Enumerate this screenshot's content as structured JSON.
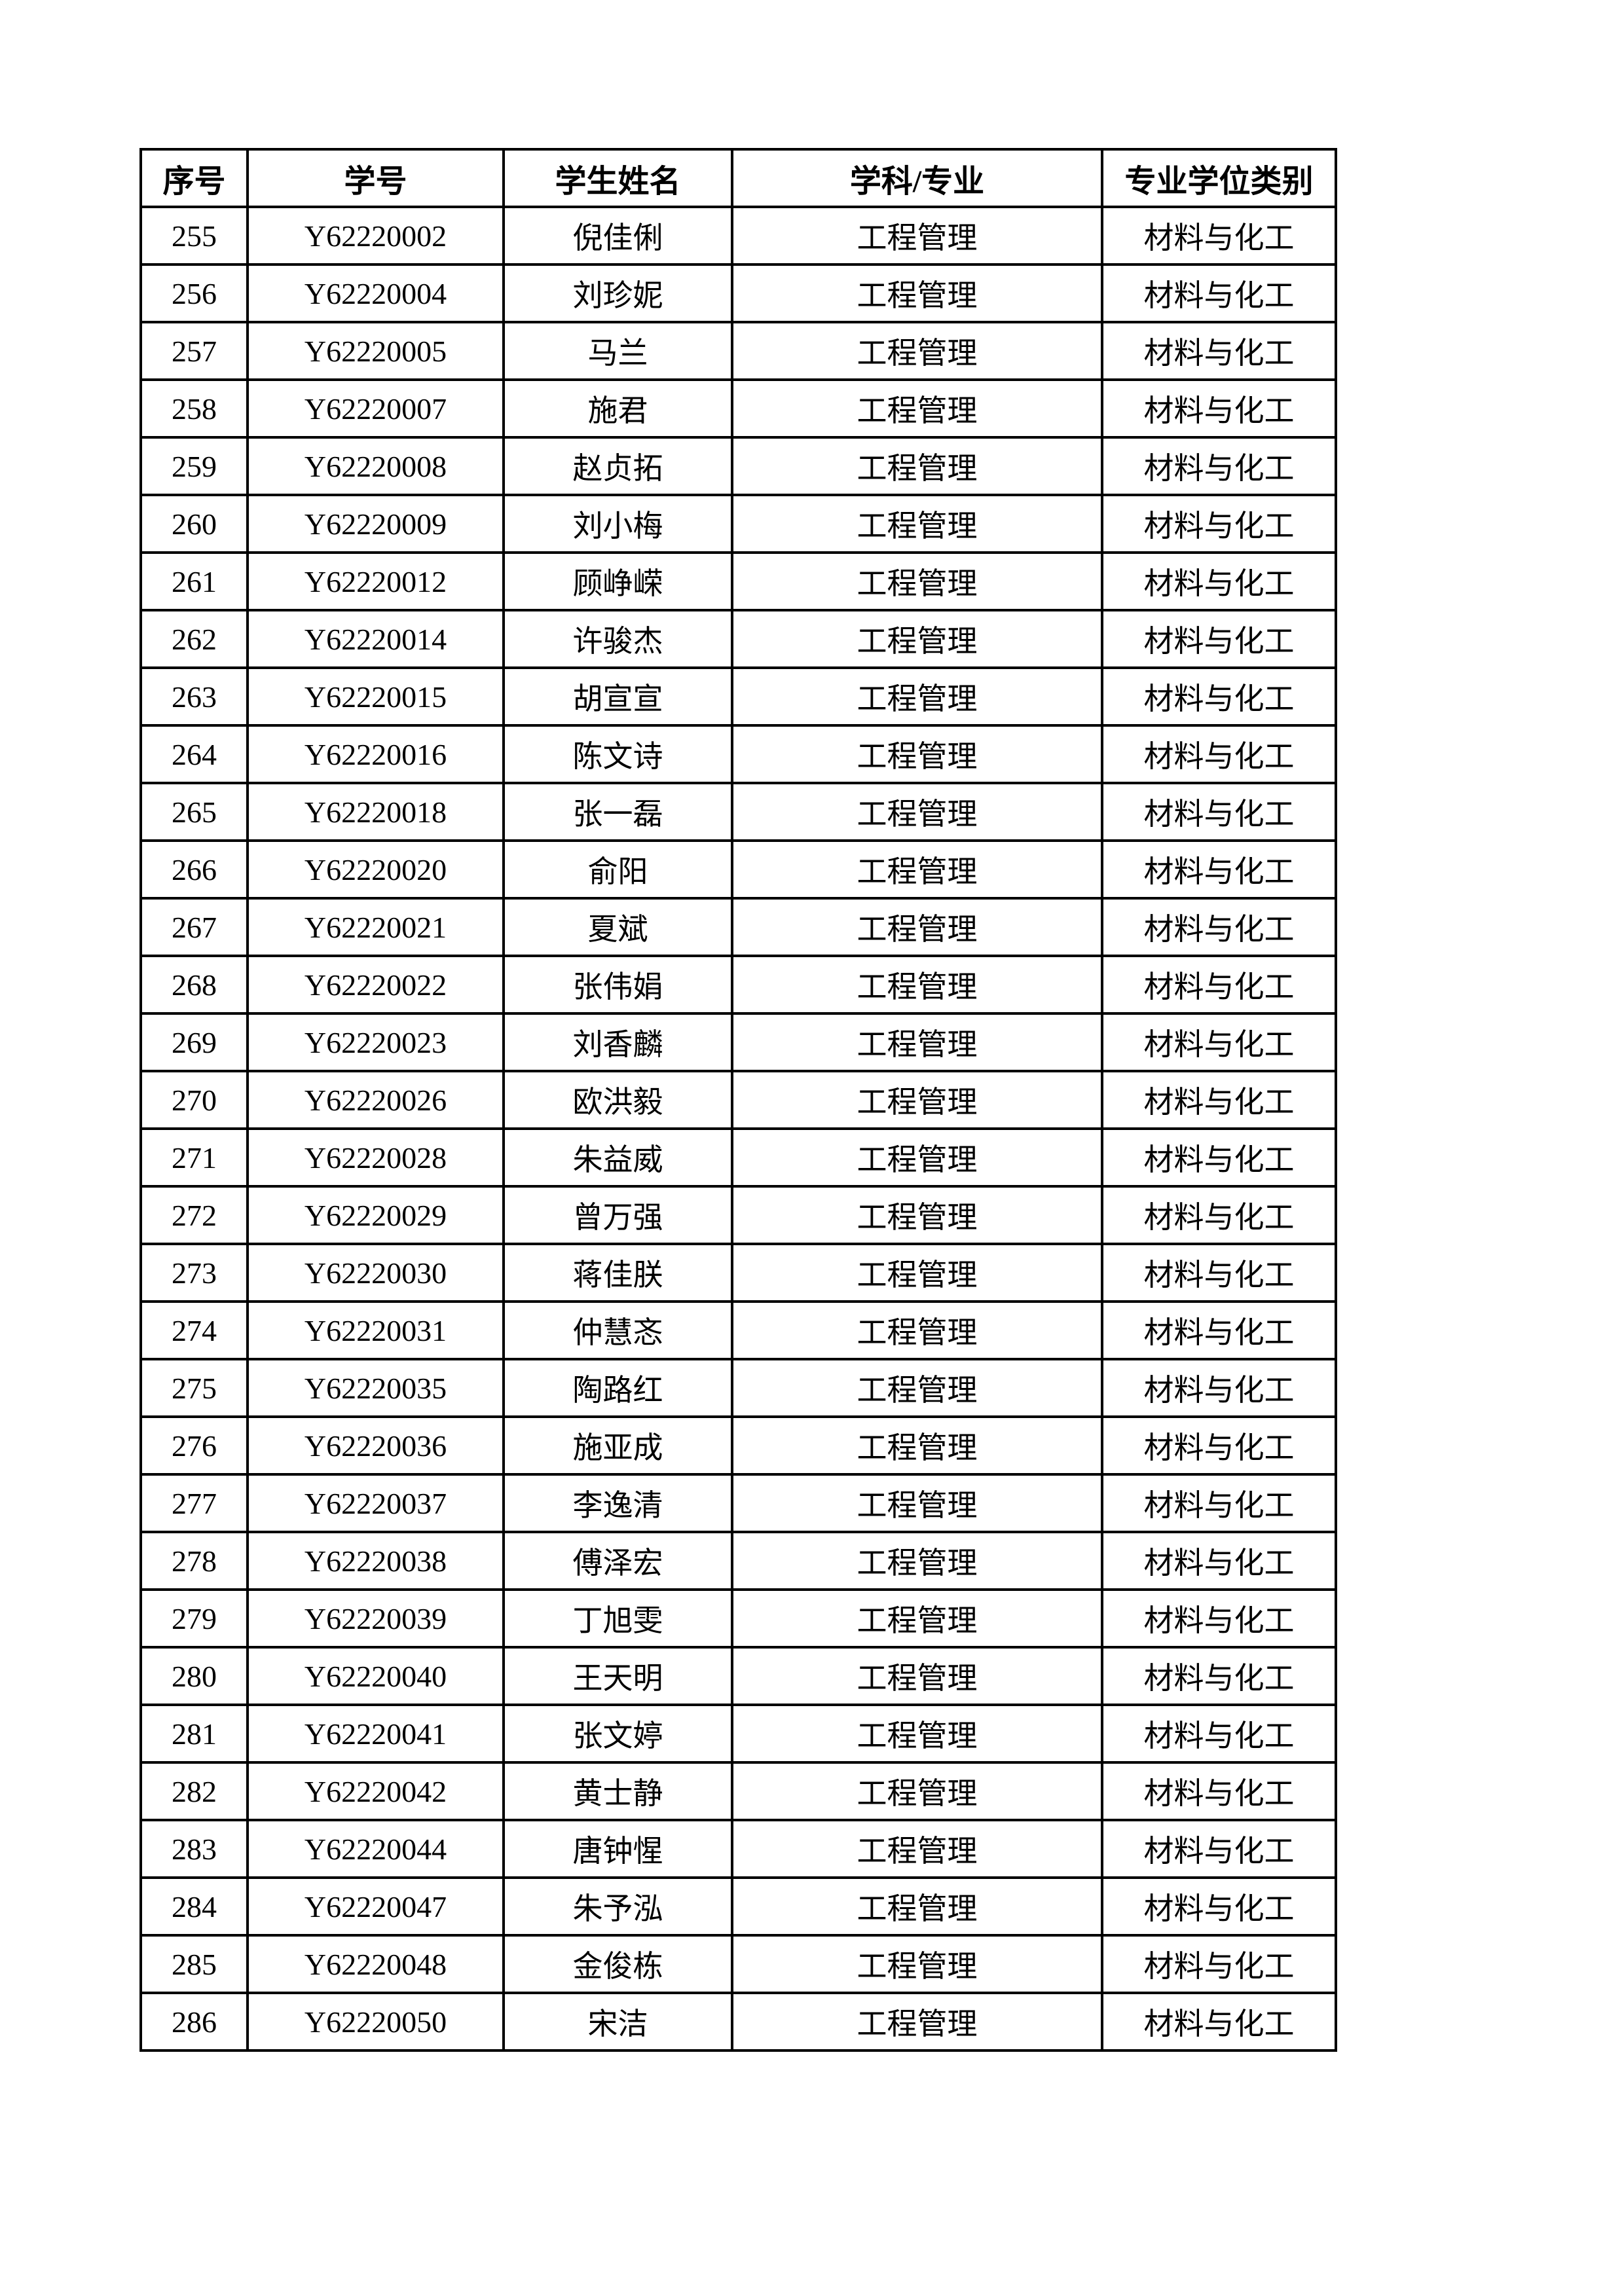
{
  "table": {
    "headers": [
      "序号",
      "学号",
      "学生姓名",
      "学科/专业",
      "专业学位类别"
    ],
    "rows": [
      [
        "255",
        "Y62220002",
        "倪佳俐",
        "工程管理",
        "材料与化工"
      ],
      [
        "256",
        "Y62220004",
        "刘珍妮",
        "工程管理",
        "材料与化工"
      ],
      [
        "257",
        "Y62220005",
        "马兰",
        "工程管理",
        "材料与化工"
      ],
      [
        "258",
        "Y62220007",
        "施君",
        "工程管理",
        "材料与化工"
      ],
      [
        "259",
        "Y62220008",
        "赵贞拓",
        "工程管理",
        "材料与化工"
      ],
      [
        "260",
        "Y62220009",
        "刘小梅",
        "工程管理",
        "材料与化工"
      ],
      [
        "261",
        "Y62220012",
        "顾峥嵘",
        "工程管理",
        "材料与化工"
      ],
      [
        "262",
        "Y62220014",
        "许骏杰",
        "工程管理",
        "材料与化工"
      ],
      [
        "263",
        "Y62220015",
        "胡宣宣",
        "工程管理",
        "材料与化工"
      ],
      [
        "264",
        "Y62220016",
        "陈文诗",
        "工程管理",
        "材料与化工"
      ],
      [
        "265",
        "Y62220018",
        "张一磊",
        "工程管理",
        "材料与化工"
      ],
      [
        "266",
        "Y62220020",
        "俞阳",
        "工程管理",
        "材料与化工"
      ],
      [
        "267",
        "Y62220021",
        "夏斌",
        "工程管理",
        "材料与化工"
      ],
      [
        "268",
        "Y62220022",
        "张伟娟",
        "工程管理",
        "材料与化工"
      ],
      [
        "269",
        "Y62220023",
        "刘香麟",
        "工程管理",
        "材料与化工"
      ],
      [
        "270",
        "Y62220026",
        "欧洪毅",
        "工程管理",
        "材料与化工"
      ],
      [
        "271",
        "Y62220028",
        "朱益威",
        "工程管理",
        "材料与化工"
      ],
      [
        "272",
        "Y62220029",
        "曾万强",
        "工程管理",
        "材料与化工"
      ],
      [
        "273",
        "Y62220030",
        "蒋佳朕",
        "工程管理",
        "材料与化工"
      ],
      [
        "274",
        "Y62220031",
        "仲慧忞",
        "工程管理",
        "材料与化工"
      ],
      [
        "275",
        "Y62220035",
        "陶路红",
        "工程管理",
        "材料与化工"
      ],
      [
        "276",
        "Y62220036",
        "施亚成",
        "工程管理",
        "材料与化工"
      ],
      [
        "277",
        "Y62220037",
        "李逸清",
        "工程管理",
        "材料与化工"
      ],
      [
        "278",
        "Y62220038",
        "傅泽宏",
        "工程管理",
        "材料与化工"
      ],
      [
        "279",
        "Y62220039",
        "丁旭雯",
        "工程管理",
        "材料与化工"
      ],
      [
        "280",
        "Y62220040",
        "王天明",
        "工程管理",
        "材料与化工"
      ],
      [
        "281",
        "Y62220041",
        "张文婷",
        "工程管理",
        "材料与化工"
      ],
      [
        "282",
        "Y62220042",
        "黄士静",
        "工程管理",
        "材料与化工"
      ],
      [
        "283",
        "Y62220044",
        "唐钟惺",
        "工程管理",
        "材料与化工"
      ],
      [
        "284",
        "Y62220047",
        "朱予泓",
        "工程管理",
        "材料与化工"
      ],
      [
        "285",
        "Y62220048",
        "金俊栋",
        "工程管理",
        "材料与化工"
      ],
      [
        "286",
        "Y62220050",
        "宋洁",
        "工程管理",
        "材料与化工"
      ]
    ]
  }
}
